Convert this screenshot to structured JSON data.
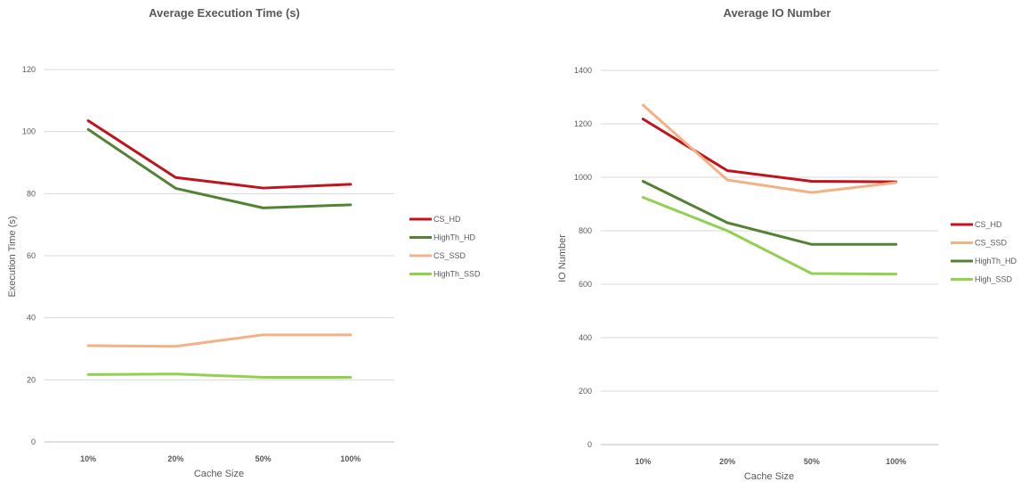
{
  "chart_data": [
    {
      "type": "line",
      "title": "Average Execution Time (s)",
      "xlabel": "Cache Size",
      "ylabel": "Execution Time (s)",
      "categories": [
        "10%",
        "20%",
        "50%",
        "100%"
      ],
      "ylim": [
        0,
        120
      ],
      "yticks": [
        0,
        20,
        40,
        60,
        80,
        100,
        120
      ],
      "grid": true,
      "legend_position": "right",
      "series": [
        {
          "name": "CS_HD",
          "color": "#c0131b",
          "values": [
            103.5,
            85.2,
            81.8,
            83
          ]
        },
        {
          "name": "HighTh_HD",
          "color": "#548235",
          "values": [
            100.7,
            81.7,
            75.4,
            76.4
          ]
        },
        {
          "name": "CS_SSD",
          "color": "#f4b183",
          "values": [
            31,
            30.8,
            34.5,
            34.5
          ]
        },
        {
          "name": "HighTh_SSD",
          "color": "#92d050",
          "values": [
            21.7,
            21.9,
            20.8,
            20.8
          ]
        }
      ]
    },
    {
      "type": "line",
      "title": "Average IO Number",
      "xlabel": "Cache Size",
      "ylabel": "IO Number",
      "categories": [
        "10%",
        "20%",
        "50%",
        "100%"
      ],
      "ylim": [
        0,
        1400
      ],
      "yticks": [
        0,
        200,
        400,
        600,
        800,
        1000,
        1200,
        1400
      ],
      "grid": true,
      "legend_position": "right",
      "series": [
        {
          "name": "CS_HD",
          "color": "#c0131b",
          "values": [
            1218,
            1025,
            985,
            983
          ]
        },
        {
          "name": "CS_SSD",
          "color": "#f4b183",
          "values": [
            1270,
            990,
            943,
            980
          ]
        },
        {
          "name": "HighTh_HD",
          "color": "#548235",
          "values": [
            985,
            830,
            749,
            749
          ]
        },
        {
          "name": "High_SSD",
          "color": "#92d050",
          "values": [
            925,
            800,
            640,
            638
          ]
        }
      ]
    }
  ]
}
